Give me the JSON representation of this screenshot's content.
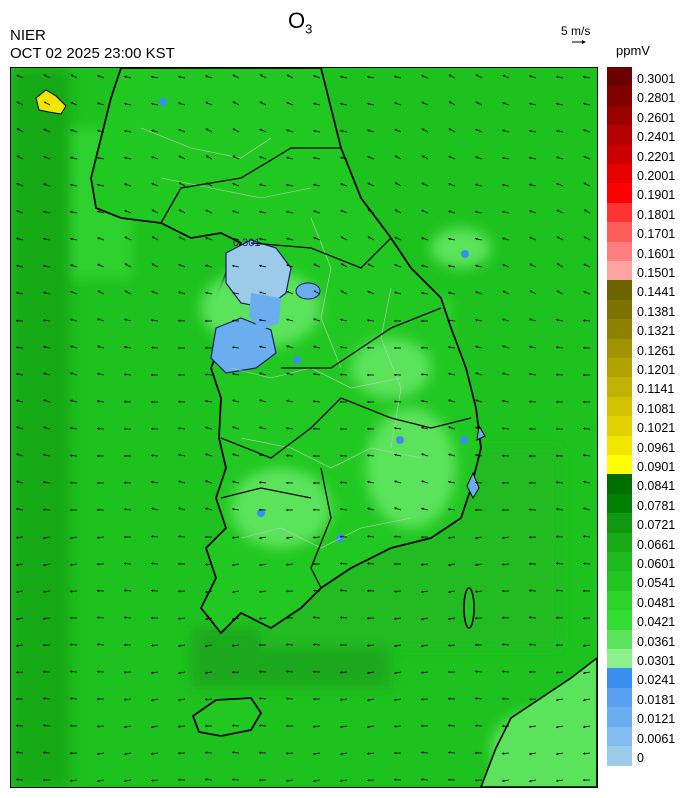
{
  "header": {
    "organization": "NIER",
    "datetime": "OCT 02 2025 23:00 KST",
    "title_main": "O",
    "title_sub": "3",
    "wind_reference": "5 m/s",
    "units": "ppmV"
  },
  "map": {
    "contour_label": "0.301",
    "colors": {
      "background_field": "#1ec21e",
      "land_field": "#22c822",
      "low_field": "#5be35b",
      "blue_field": "#6aaef0",
      "light_blue_field": "#9ccbe9",
      "yellow_patch": "#f2e600",
      "coast": "#000000",
      "districts": "#c8c8c8"
    }
  },
  "colorbar": {
    "labels": [
      "0.3001",
      "0.2801",
      "0.2601",
      "0.2401",
      "0.2201",
      "0.2001",
      "0.1901",
      "0.1801",
      "0.1701",
      "0.1601",
      "0.1501",
      "0.1441",
      "0.1381",
      "0.1321",
      "0.1261",
      "0.1201",
      "0.1141",
      "0.1081",
      "0.1021",
      "0.0961",
      "0.0901",
      "0.0841",
      "0.0781",
      "0.0721",
      "0.0661",
      "0.0601",
      "0.0541",
      "0.0481",
      "0.0421",
      "0.0361",
      "0.0301",
      "0.0241",
      "0.0181",
      "0.0121",
      "0.0061",
      "0"
    ],
    "colors": [
      "#6b0000",
      "#800000",
      "#990000",
      "#b30000",
      "#cc0000",
      "#e60000",
      "#ff0000",
      "#ff3333",
      "#ff5c5c",
      "#ff8080",
      "#ffa3a3",
      "#6b6200",
      "#7d7200",
      "#8f8200",
      "#a09200",
      "#b2a200",
      "#c2b200",
      "#d3c200",
      "#e3d200",
      "#f2e600",
      "#ffff00",
      "#006e00",
      "#008000",
      "#109810",
      "#18aa18",
      "#1fb81f",
      "#22c422",
      "#2ad22a",
      "#32dc32",
      "#5be35b",
      "#8cf08c",
      "#3a8ef0",
      "#5aa0f0",
      "#6aaef0",
      "#82bcf0",
      "#9ccbe9"
    ]
  }
}
